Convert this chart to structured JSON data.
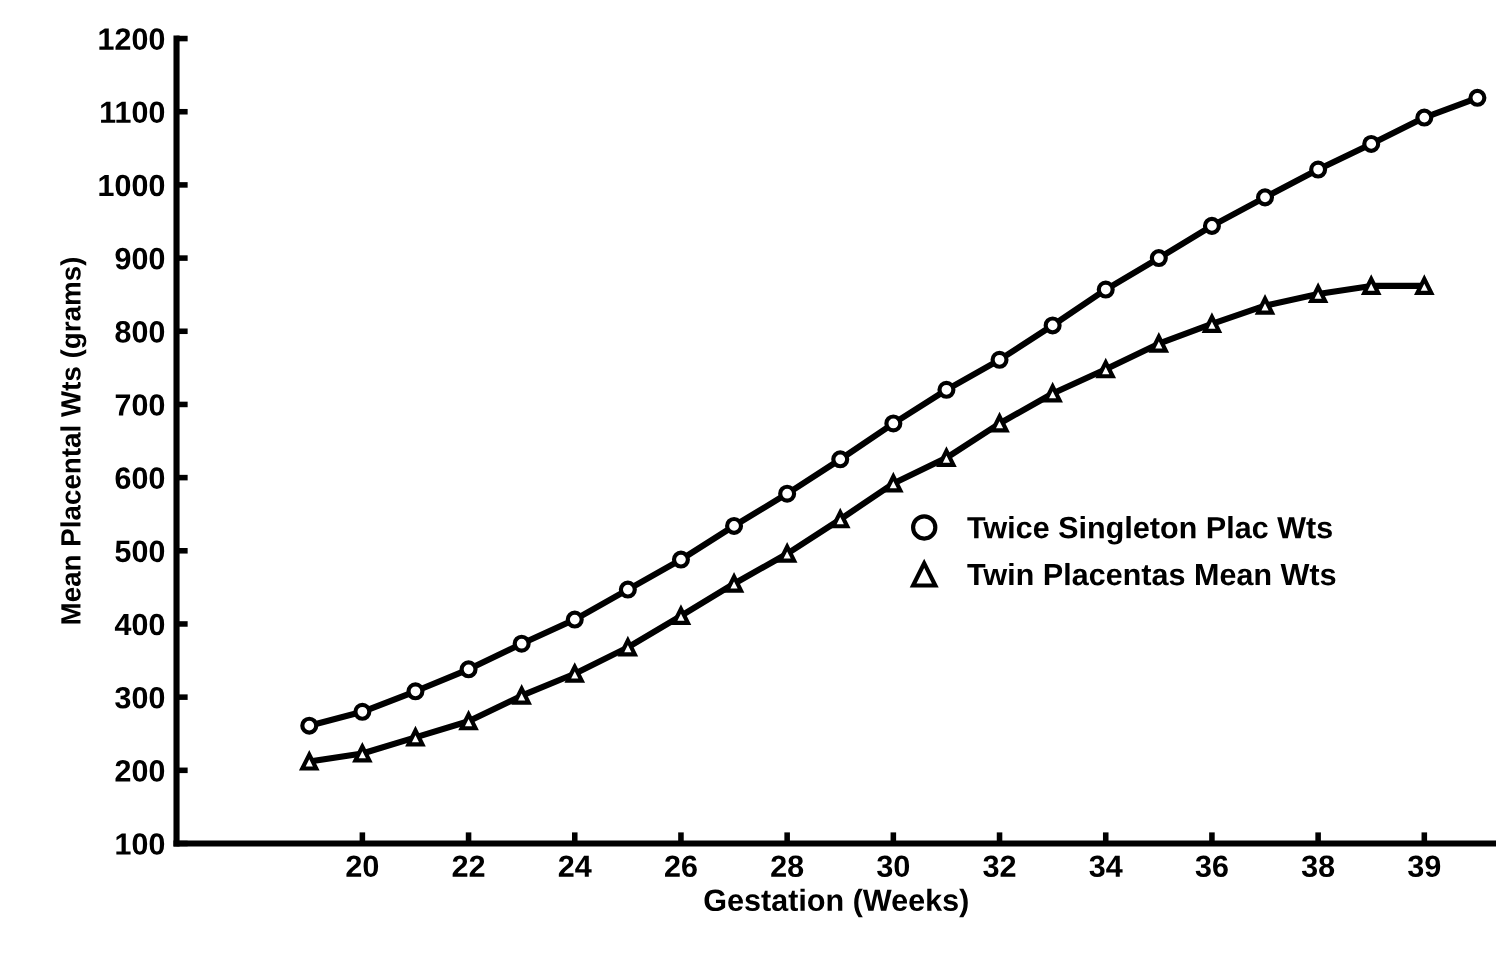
{
  "chart_data": {
    "type": "line",
    "xlabel": "Gestation (Weeks)",
    "ylabel": "Mean Placental Wts (grams)",
    "categories": [
      null,
      "20",
      null,
      "22",
      null,
      "24",
      null,
      "26",
      null,
      "28",
      null,
      "30",
      null,
      "32",
      null,
      "34",
      null,
      "36",
      null,
      "38",
      null,
      "39",
      null
    ],
    "ylim": [
      100,
      1200
    ],
    "yticks": [
      100,
      200,
      300,
      400,
      500,
      600,
      700,
      800,
      900,
      1000,
      1100,
      1200
    ],
    "grid": false,
    "legend": "right",
    "line_style": "solid",
    "series": [
      {
        "name": "Twice Singleton Plac Wts",
        "color": "#000000",
        "marker": "circle",
        "values": [
          261,
          280,
          308,
          338,
          373,
          406,
          447,
          488,
          534,
          578,
          625,
          674,
          720,
          761,
          808,
          857,
          900,
          944,
          983,
          1021,
          1056,
          1092,
          1119
        ]
      },
      {
        "name": "Twin Placentas Mean Wts",
        "color": "#000000",
        "marker": "triangle",
        "values": [
          212,
          223,
          245,
          267,
          302,
          332,
          368,
          411,
          455,
          496,
          543,
          592,
          627,
          674,
          715,
          748,
          783,
          810,
          835,
          851,
          862,
          862,
          null
        ]
      }
    ]
  }
}
